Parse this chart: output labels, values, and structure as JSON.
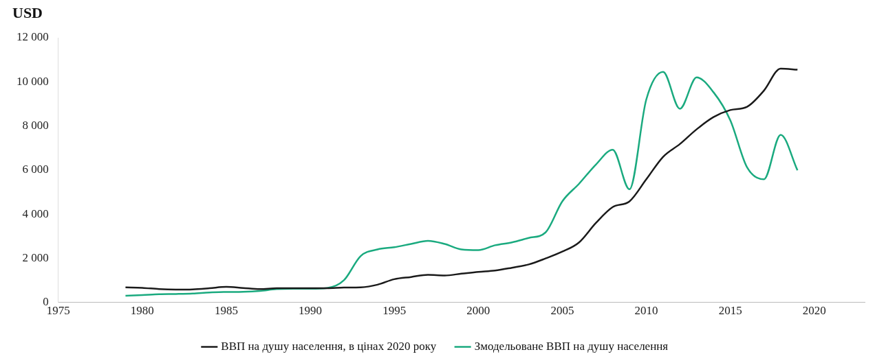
{
  "chart_data": {
    "type": "line",
    "ylabel": "USD",
    "x": [
      1979,
      1980,
      1981,
      1982,
      1983,
      1984,
      1985,
      1986,
      1987,
      1988,
      1989,
      1990,
      1991,
      1992,
      1993,
      1994,
      1995,
      1996,
      1997,
      1998,
      1999,
      2000,
      2001,
      2002,
      2003,
      2004,
      2005,
      2006,
      2007,
      2008,
      2009,
      2010,
      2011,
      2012,
      2013,
      2014,
      2015,
      2016,
      2017,
      2018,
      2019
    ],
    "series": [
      {
        "name": "ВВП на душу населення, в цінах 2020 року",
        "color": "#1a1a1a",
        "values": [
          680,
          660,
          600,
          580,
          590,
          640,
          700,
          650,
          600,
          640,
          640,
          640,
          640,
          670,
          680,
          800,
          1050,
          1150,
          1250,
          1220,
          1300,
          1380,
          1440,
          1570,
          1720,
          1990,
          2300,
          2720,
          3600,
          4320,
          4580,
          5580,
          6600,
          7180,
          7850,
          8400,
          8720,
          8870,
          9600,
          10600,
          10550
        ]
      },
      {
        "name": "Змодельоване ВВП на душу населення",
        "color": "#1aaa7f",
        "values": [
          300,
          330,
          370,
          380,
          400,
          450,
          470,
          480,
          520,
          600,
          620,
          620,
          650,
          1000,
          2100,
          2400,
          2500,
          2650,
          2790,
          2650,
          2400,
          2370,
          2590,
          2720,
          2920,
          3170,
          4580,
          5380,
          6250,
          6920,
          5130,
          9200,
          10450,
          8780,
          10200,
          9530,
          8260,
          6120,
          5580,
          7600,
          5990
        ]
      }
    ],
    "xlim": [
      1975,
      2023
    ],
    "xticks": [
      1975,
      1980,
      1985,
      1990,
      1995,
      2000,
      2005,
      2010,
      2015,
      2020
    ],
    "ylim": [
      0,
      12000
    ],
    "yticks": [
      0,
      {
        "value": 2000,
        "label": "2 000"
      },
      {
        "value": 4000,
        "label": "4 000"
      },
      {
        "value": 6000,
        "label": "6 000"
      },
      {
        "value": 8000,
        "label": "8 000"
      },
      {
        "value": 10000,
        "label": "10 000"
      },
      {
        "value": 12000,
        "label": "12 000"
      }
    ],
    "grid": false,
    "legend": "bottom",
    "marker": "none",
    "line_style": "solid"
  }
}
